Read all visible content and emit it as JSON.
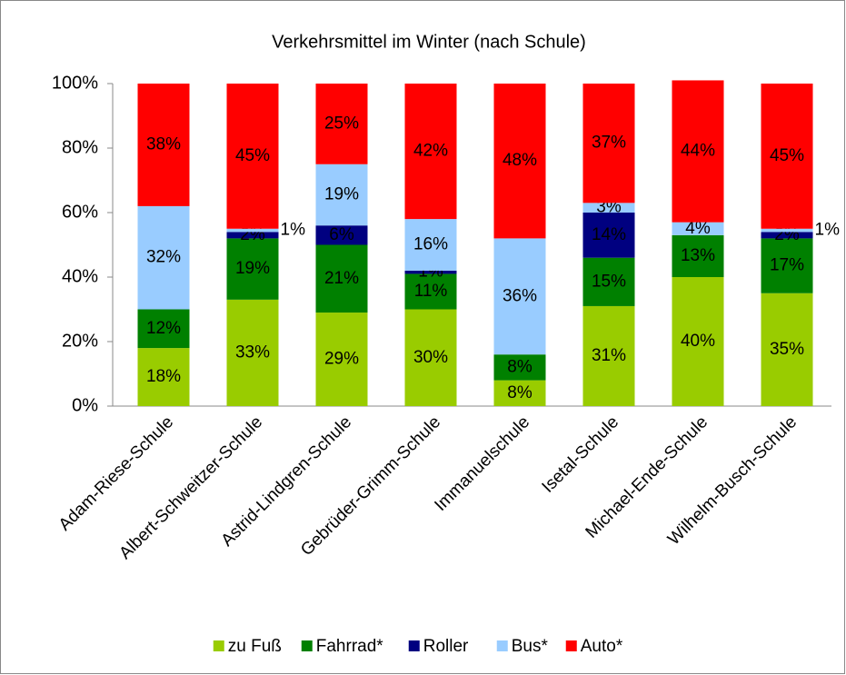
{
  "chart_data": {
    "type": "stacked_bar",
    "title": "Verkehrsmittel im Winter (nach Schule)",
    "categories": [
      "Adam-Riese-Schule",
      "Albert-Schweitzer-Schule",
      "Astrid-Lindgren-Schule",
      "Gebrüder-Grimm-Schule",
      "Immanuelschule",
      "Isetal-Schule",
      "Michael-Ende-Schule",
      "Wilhelm-Busch-Schule"
    ],
    "series": [
      {
        "name": "zu Fuß",
        "color": "#99cc00",
        "values": [
          18,
          33,
          29,
          30,
          8,
          31,
          40,
          35
        ],
        "value_labels": [
          "18%",
          "33%",
          "29%",
          "30%",
          "8%",
          "31%",
          "40%",
          "35%"
        ]
      },
      {
        "name": "Fahrrad*",
        "color": "#008000",
        "values": [
          12,
          19,
          21,
          11,
          8,
          15,
          13,
          17
        ],
        "value_labels": [
          "12%",
          "19%",
          "21%",
          "11%",
          "8%",
          "15%",
          "13%",
          "17%"
        ]
      },
      {
        "name": "Roller",
        "color": "#000080",
        "values": [
          null,
          2,
          6,
          1,
          null,
          14,
          null,
          2
        ],
        "value_labels": [
          null,
          "2%",
          "6%",
          "1%",
          null,
          "14%",
          null,
          "2%"
        ]
      },
      {
        "name": "Bus*",
        "color": "#99ccff",
        "values": [
          32,
          1,
          19,
          16,
          36,
          3,
          4,
          1
        ],
        "value_labels": [
          "32%",
          "1%",
          "19%",
          "16%",
          "36%",
          "3%",
          "4%",
          "1%"
        ]
      },
      {
        "name": "Auto*",
        "color": "#ff0000",
        "values": [
          38,
          45,
          25,
          42,
          48,
          37,
          44,
          45
        ],
        "value_labels": [
          "38%",
          "45%",
          "25%",
          "42%",
          "48%",
          "37%",
          "44%",
          "45%"
        ]
      }
    ],
    "ylim": [
      0,
      100
    ],
    "yticks": [
      {
        "value": 0,
        "label": "0%"
      },
      {
        "value": 20,
        "label": "20%"
      },
      {
        "value": 40,
        "label": "40%"
      },
      {
        "value": 60,
        "label": "60%"
      },
      {
        "value": 80,
        "label": "80%"
      },
      {
        "value": 100,
        "label": "100%"
      }
    ],
    "legend": "bottom"
  }
}
